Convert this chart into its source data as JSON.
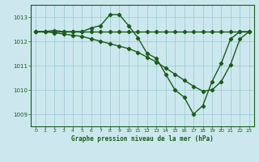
{
  "title": "Graphe pression niveau de la mer (hPa)",
  "background_color": "#cce8ee",
  "grid_color": "#9ecdd6",
  "line_color": "#1a5c1a",
  "xlim": [
    -0.5,
    23.5
  ],
  "ylim": [
    1008.5,
    1013.5
  ],
  "yticks": [
    1009,
    1010,
    1011,
    1012,
    1013
  ],
  "xticks": [
    0,
    1,
    2,
    3,
    4,
    5,
    6,
    7,
    8,
    9,
    10,
    11,
    12,
    13,
    14,
    15,
    16,
    17,
    18,
    19,
    20,
    21,
    22,
    23
  ],
  "series_flat": [
    1012.4,
    1012.4,
    1012.4,
    1012.4,
    1012.4,
    1012.4,
    1012.4,
    1012.4,
    1012.4,
    1012.4,
    1012.4,
    1012.4,
    1012.4,
    1012.4,
    1012.4,
    1012.4,
    1012.4,
    1012.4,
    1012.4,
    1012.4,
    1012.4,
    1012.4,
    1012.4,
    1012.4
  ],
  "series_diag": [
    1012.4,
    1012.4,
    1012.35,
    1012.3,
    1012.25,
    1012.2,
    1012.1,
    1012.0,
    1011.9,
    1011.8,
    1011.7,
    1011.55,
    1011.35,
    1011.15,
    1010.9,
    1010.65,
    1010.4,
    1010.15,
    1009.95,
    1010.0,
    1010.35,
    1011.05,
    1012.1,
    1012.4
  ],
  "series_peak": [
    1012.4,
    1012.4,
    1012.45,
    1012.4,
    1012.4,
    1012.4,
    1012.55,
    1012.65,
    1013.1,
    1013.1,
    1012.65,
    1012.15,
    1011.5,
    1011.3,
    1010.65,
    1010.0,
    1009.7,
    1009.0,
    1009.35,
    1010.35,
    1011.1,
    1012.1,
    1012.4,
    1012.4
  ]
}
